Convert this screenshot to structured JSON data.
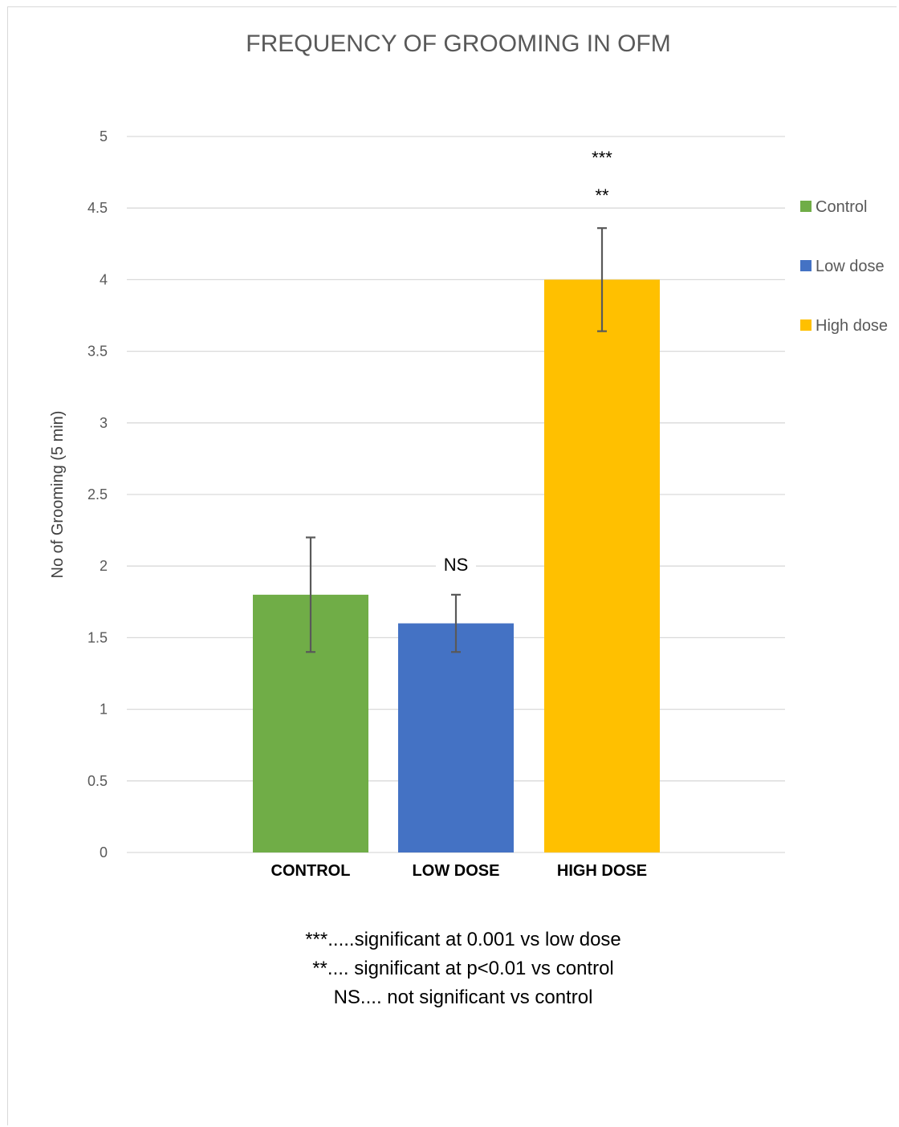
{
  "chart_data": {
    "type": "bar",
    "title": "FREQUENCY OF GROOMING IN OFM",
    "ylabel": "No of Grooming (5 min)",
    "xlabel": "",
    "categories": [
      "CONTROL",
      "LOW DOSE",
      "HIGH DOSE"
    ],
    "series": [
      {
        "name": "Control",
        "color": "#70ad47",
        "values": [
          1.8,
          null,
          null
        ],
        "errors": [
          0.4,
          null,
          null
        ]
      },
      {
        "name": "Low dose",
        "color": "#4472c4",
        "values": [
          null,
          1.6,
          null
        ],
        "errors": [
          null,
          0.2,
          null
        ]
      },
      {
        "name": "High dose",
        "color": "#ffc000",
        "values": [
          null,
          null,
          4.0
        ],
        "errors": [
          null,
          null,
          0.36
        ]
      }
    ],
    "ylim": [
      0,
      5
    ],
    "yticks": [
      "0",
      "0.5",
      "1",
      "1.5",
      "2",
      "2.5",
      "3",
      "3.5",
      "4",
      "4.5",
      "5"
    ],
    "grid": true,
    "legend_position": "right",
    "annotations": [
      {
        "category": "LOW DOSE",
        "lines": [
          "NS"
        ]
      },
      {
        "category": "HIGH DOSE",
        "lines": [
          "***",
          "**"
        ]
      }
    ],
    "footnotes": [
      "***.....significant at 0.001 vs low dose",
      "**.... significant at p<0.01 vs control",
      "NS.... not significant vs control"
    ]
  }
}
